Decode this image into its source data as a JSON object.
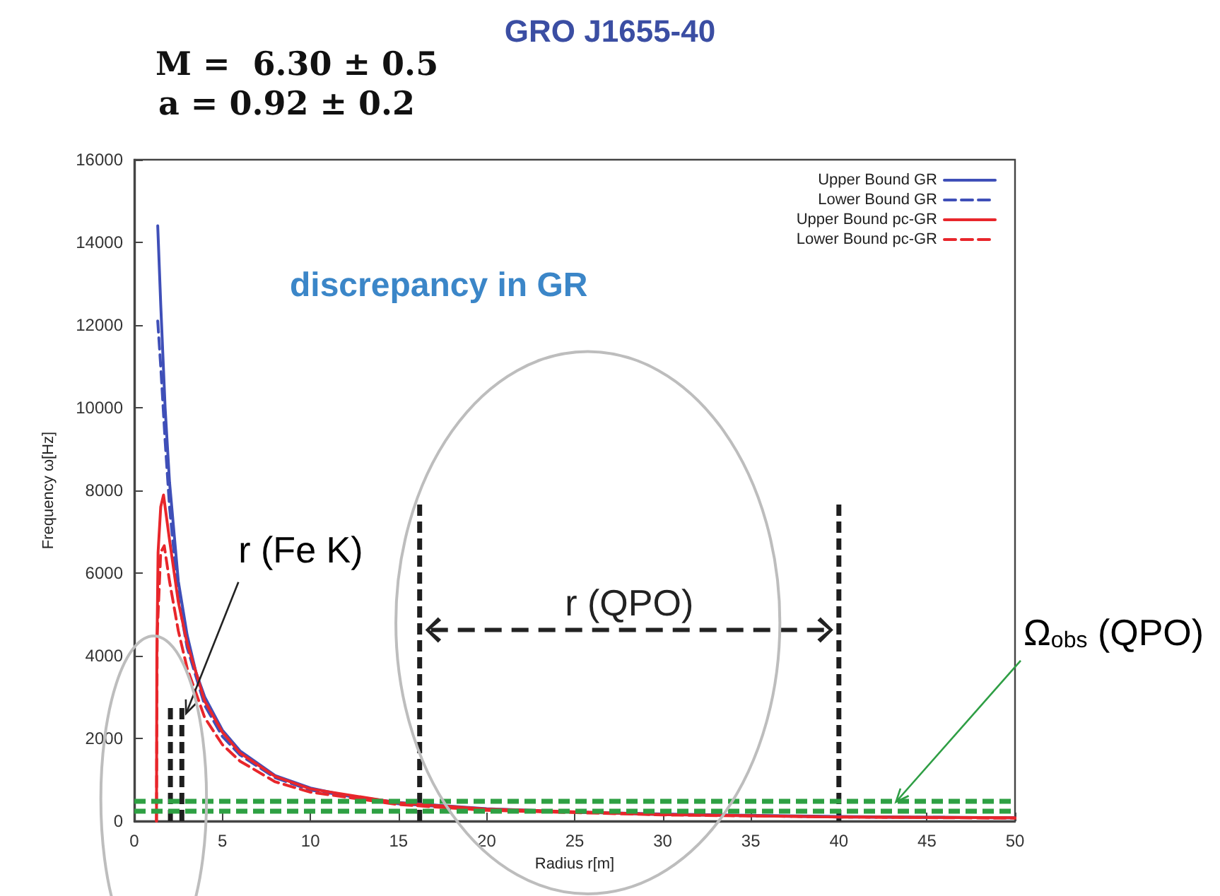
{
  "chart_data": {
    "type": "line",
    "title": "GRO J1655-40",
    "xlabel": "Radius r[m]",
    "ylabel": "Frequency ω[Hz]",
    "xlim": [
      0,
      50
    ],
    "xticks": [
      0,
      5,
      10,
      15,
      20,
      25,
      30,
      35,
      40,
      45,
      50
    ],
    "ylim": [
      0,
      16000
    ],
    "yticks": [
      0,
      2000,
      4000,
      6000,
      8000,
      10000,
      12000,
      14000,
      16000
    ],
    "grid": false,
    "legend": "top right",
    "series": [
      {
        "name": "Upper Bound GR",
        "color": "#3f4fb8",
        "line_style": "solid",
        "x": [
          1.33,
          1.5,
          1.75,
          2,
          2.5,
          3,
          3.5,
          4,
          5,
          6,
          8,
          10,
          12,
          15,
          20,
          25,
          30,
          40,
          50
        ],
        "values": [
          14400,
          12500,
          10000,
          8200,
          5800,
          4500,
          3600,
          3000,
          2200,
          1700,
          1100,
          800,
          620,
          450,
          300,
          220,
          170,
          110,
          80
        ]
      },
      {
        "name": "Lower Bound GR",
        "color": "#3f4fb8",
        "line_style": "dashed",
        "x": [
          1.33,
          1.5,
          1.75,
          2,
          2.5,
          3,
          4,
          5,
          6,
          8,
          10,
          15,
          20,
          30,
          40,
          50
        ],
        "values": [
          12100,
          11000,
          9200,
          7600,
          5400,
          4200,
          2800,
          2050,
          1600,
          1050,
          750,
          420,
          280,
          160,
          100,
          80
        ]
      },
      {
        "name": "Upper Bound pc-GR",
        "color": "#e8262b",
        "line_style": "solid",
        "x": [
          1.26,
          1.28,
          1.35,
          1.5,
          1.66,
          2,
          2.5,
          3,
          4,
          5,
          6,
          8,
          10,
          15,
          20,
          30,
          40,
          50
        ],
        "values": [
          0,
          4000,
          6500,
          7600,
          7890,
          6800,
          5300,
          4300,
          2900,
          2150,
          1650,
          1080,
          780,
          440,
          290,
          160,
          100,
          80
        ]
      },
      {
        "name": "Lower Bound pc-GR",
        "color": "#e8262b",
        "line_style": "dashed",
        "x": [
          1.26,
          1.3,
          1.5,
          1.7,
          2,
          2.5,
          3,
          4,
          5,
          6,
          8,
          10,
          15,
          20,
          30,
          40,
          50
        ],
        "values": [
          0,
          4500,
          6500,
          6660,
          5800,
          4600,
          3700,
          2500,
          1850,
          1450,
          950,
          700,
          400,
          260,
          150,
          100,
          70
        ]
      },
      {
        "color": "#1e1e1e",
        "line_style": "dashed",
        "x": [
          2.05,
          2.05
        ],
        "values": [
          0,
          2740
        ]
      },
      {
        "color": "#1e1e1e",
        "line_style": "dashed",
        "x": [
          2.7,
          2.7
        ],
        "values": [
          0,
          2740
        ]
      },
      {
        "color": "#1e1e1e",
        "line_style": "dashed",
        "x": [
          16.2,
          16.2
        ],
        "values": [
          0,
          7770
        ]
      },
      {
        "color": "#1e1e1e",
        "line_style": "dashed",
        "x": [
          40,
          40
        ],
        "values": [
          0,
          7770
        ]
      }
    ],
    "ref_lines": [
      {
        "axis": "y",
        "value": 500,
        "color": "#2ea043",
        "line_style": "dashed"
      },
      {
        "axis": "y",
        "value": 250,
        "color": "#2ea043",
        "line_style": "dashed"
      }
    ],
    "annotations": [
      "M =  6.30 ± 0.5",
      "a = 0.92 ± 0.2",
      "discrepancy in GR",
      {
        "text": "r (Fe K)",
        "x": 2.7,
        "y": 2740
      },
      "r (QPO)",
      {
        "text": "Ω$_{obs}$ (QPO)",
        "x": 43,
        "y": 600
      }
    ]
  }
}
